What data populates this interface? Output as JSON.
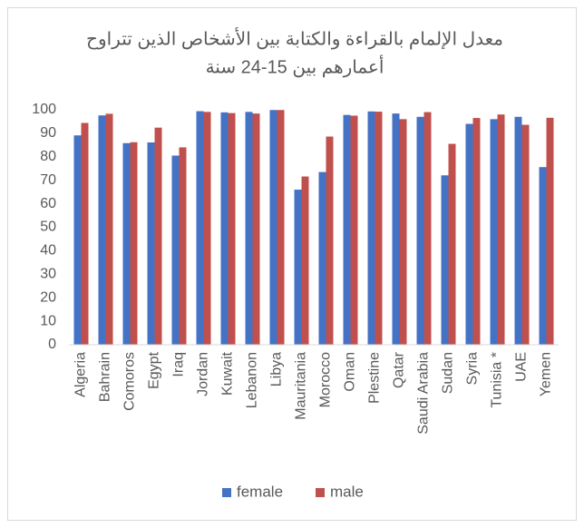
{
  "chart_data": {
    "type": "bar",
    "title": [
      "معدل الإلمام بالقراءة والكتابة بين الأشخاص الذين تتراوح",
      "أعمارهم بين 15-24 سنة"
    ],
    "categories": [
      "Algeria",
      "Bahrain",
      "Comoros",
      "Egypt",
      "Iraq",
      "Jordan",
      "Kuwait",
      "Lebanon",
      "Libya",
      "Mauritania",
      "Morocco",
      "Oman",
      "Plestine",
      "Qatar",
      "Saudi Arabia",
      "Sudan",
      "Syria",
      "Tunisia *",
      "UAE",
      "Yemen"
    ],
    "series": [
      {
        "name": "female",
        "color": "#4472c4",
        "values": [
          89.1,
          97.6,
          85.8,
          86.1,
          80.5,
          99.4,
          98.9,
          99.1,
          99.9,
          66.0,
          73.5,
          97.8,
          99.3,
          98.4,
          97.0,
          72.1,
          94.0,
          96.0,
          97.0,
          75.6
        ]
      },
      {
        "name": "male",
        "color": "#c0504d",
        "values": [
          94.4,
          98.3,
          86.2,
          92.4,
          84.0,
          99.1,
          98.6,
          98.4,
          99.9,
          71.6,
          88.6,
          97.5,
          99.2,
          96.0,
          99.0,
          85.5,
          96.5,
          98.0,
          93.6,
          96.6
        ]
      }
    ],
    "ylim": [
      0,
      100
    ],
    "yticks": [
      0,
      10,
      20,
      30,
      40,
      50,
      60,
      70,
      80,
      90,
      100
    ],
    "grid": false,
    "legend": "bottom"
  }
}
